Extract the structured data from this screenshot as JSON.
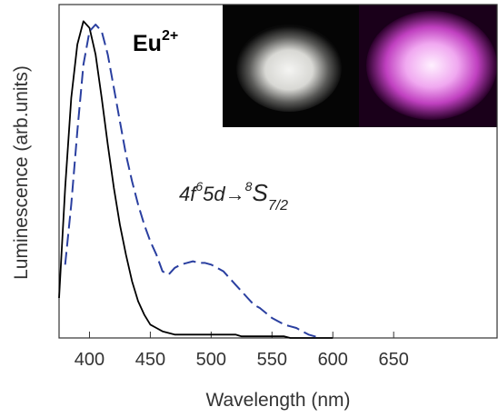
{
  "chart_data": {
    "type": "line",
    "x_label": "Wavelength (nm)",
    "y_label": "Luminescence (arb.units)",
    "x": [
      375,
      380,
      385,
      390,
      395,
      400,
      405,
      410,
      415,
      420,
      425,
      430,
      435,
      440,
      445,
      450,
      455,
      460,
      465,
      470,
      475,
      480,
      485,
      490,
      495,
      500,
      505,
      510,
      515,
      520,
      525,
      530,
      535,
      540,
      545,
      550,
      555,
      560,
      565,
      570,
      575,
      580,
      585,
      590,
      595,
      600
    ],
    "series": [
      {
        "color": "#000000",
        "dash": "solid",
        "values": [
          0.12,
          0.45,
          0.72,
          0.88,
          0.95,
          0.93,
          0.85,
          0.72,
          0.58,
          0.45,
          0.34,
          0.25,
          0.17,
          0.11,
          0.07,
          0.04,
          0.03,
          0.02,
          0.015,
          0.01,
          0.01,
          0.01,
          0.01,
          0.01,
          0.01,
          0.01,
          0.01,
          0.01,
          0.01,
          0.01,
          0.005,
          0.005,
          0.005,
          0.005,
          0.005,
          0.005,
          0.005,
          0.005,
          0,
          0,
          0,
          0,
          0,
          0,
          0,
          0
        ]
      },
      {
        "color": "#2a3fa0",
        "dash": "dashed",
        "values": [
          null,
          0.22,
          0.4,
          0.62,
          0.82,
          0.92,
          0.94,
          0.92,
          0.85,
          0.75,
          0.65,
          0.55,
          0.47,
          0.4,
          0.34,
          0.29,
          0.25,
          0.2,
          0.19,
          0.21,
          0.22,
          0.225,
          0.23,
          0.225,
          0.225,
          0.22,
          0.21,
          0.2,
          0.18,
          0.16,
          0.14,
          0.12,
          0.1,
          0.09,
          0.075,
          0.06,
          0.05,
          0.04,
          0.035,
          0.03,
          0.02,
          0.01,
          0.005,
          0,
          null,
          null
        ]
      }
    ],
    "xlim": [
      375,
      735
    ],
    "ylim": [
      0,
      1
    ],
    "xticks": [
      400,
      450,
      500,
      550,
      600,
      650
    ],
    "annotations": [
      {
        "text": "Eu",
        "sup": "2+"
      },
      {
        "pre": "4f",
        "sup1": "6",
        "mid": "5d→",
        "sup2": "8",
        "main": "S",
        "sub": "7/2"
      }
    ]
  }
}
